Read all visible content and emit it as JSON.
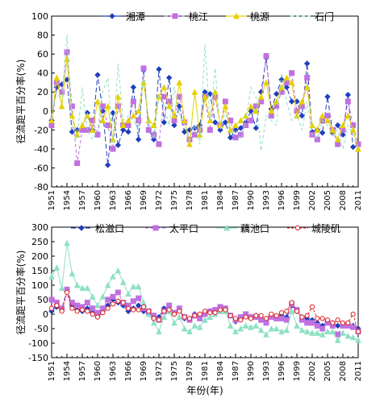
{
  "chart_data": [
    {
      "type": "line",
      "title": "",
      "ylabel": "径流距平百分率(%)",
      "xlabel": "",
      "ylim": [
        -80,
        100
      ],
      "yticks": [
        -80,
        -60,
        -40,
        -20,
        0,
        20,
        40,
        60,
        80,
        100
      ],
      "xrange": [
        1951,
        2011
      ],
      "xticks": [
        1951,
        1954,
        1957,
        1960,
        1963,
        1966,
        1969,
        1972,
        1975,
        1978,
        1981,
        1984,
        1987,
        1990,
        1993,
        1996,
        1999,
        2002,
        2005,
        2008,
        2011
      ],
      "legend_position": "top",
      "series": [
        {
          "name": "湘潭",
          "color": "#1f3fbf",
          "dash": "6,3",
          "marker": "diamond",
          "values": [
            -10,
            25,
            28,
            33,
            -22,
            -20,
            -18,
            -2,
            -20,
            38,
            0,
            -57,
            -2,
            -36,
            -20,
            -22,
            25,
            -30,
            43,
            -20,
            -30,
            44,
            -12,
            35,
            -15,
            5,
            -22,
            -20,
            -18,
            -15,
            20,
            18,
            -12,
            -20,
            -12,
            -28,
            -20,
            -18,
            -12,
            0,
            -18,
            20,
            56,
            2,
            18,
            33,
            25,
            10,
            10,
            -5,
            50,
            -22,
            -20,
            -23,
            15,
            -23,
            -15,
            -25,
            17,
            -38,
            -36
          ]
        },
        {
          "name": "桃江",
          "color": "#c070e0",
          "dash": "4,3",
          "marker": "square",
          "values": [
            -15,
            30,
            20,
            62,
            5,
            -55,
            -20,
            -20,
            -10,
            -25,
            5,
            -15,
            -40,
            5,
            -15,
            -15,
            10,
            -10,
            45,
            -20,
            -25,
            -35,
            15,
            10,
            -10,
            15,
            -12,
            -30,
            -25,
            -20,
            15,
            -20,
            15,
            -15,
            10,
            -10,
            -28,
            -25,
            -15,
            -10,
            5,
            10,
            58,
            -5,
            5,
            20,
            30,
            40,
            0,
            5,
            35,
            -25,
            -30,
            -10,
            -5,
            -20,
            -35,
            -20,
            10,
            -15,
            -35
          ]
        },
        {
          "name": "桃源",
          "color": "#e6d000",
          "dash": "",
          "marker": "triangle",
          "values": [
            -10,
            35,
            5,
            55,
            -5,
            -25,
            -15,
            -5,
            -20,
            10,
            -10,
            5,
            -30,
            15,
            -15,
            -10,
            -5,
            0,
            30,
            -10,
            -15,
            15,
            25,
            5,
            -5,
            30,
            -10,
            -35,
            20,
            -25,
            15,
            -10,
            20,
            -15,
            5,
            -20,
            -15,
            -10,
            -5,
            5,
            0,
            15,
            30,
            0,
            10,
            25,
            35,
            30,
            -5,
            10,
            25,
            -15,
            -20,
            -5,
            -10,
            -20,
            -30,
            -15,
            -5,
            -20,
            -40
          ]
        },
        {
          "name": "石门",
          "color": "#8ee0c4",
          "dash": "4,3",
          "marker": "none",
          "values": [
            -5,
            20,
            10,
            80,
            -15,
            -30,
            25,
            -20,
            -30,
            -20,
            20,
            35,
            -35,
            50,
            -10,
            -5,
            -10,
            -20,
            40,
            -10,
            -30,
            15,
            5,
            -15,
            25,
            -5,
            -15,
            -30,
            -15,
            -35,
            70,
            -10,
            45,
            -20,
            0,
            -25,
            -20,
            -30,
            -10,
            25,
            15,
            -42,
            -5,
            -10,
            -15,
            40,
            10,
            -10,
            -5,
            -20,
            10,
            -25,
            -30,
            -10,
            -15,
            -25,
            -20,
            -40,
            -15,
            -25,
            -40
          ]
        }
      ]
    },
    {
      "type": "line",
      "title": "",
      "ylabel": "径流距平百分率(%)",
      "xlabel": "年份(年)",
      "ylim": [
        -150,
        300
      ],
      "yticks": [
        -150,
        -100,
        -50,
        0,
        50,
        100,
        150,
        200,
        250,
        300
      ],
      "xrange": [
        1951,
        2011
      ],
      "xticks": [
        1951,
        1954,
        1957,
        1960,
        1963,
        1966,
        1969,
        1972,
        1975,
        1978,
        1981,
        1984,
        1987,
        1990,
        1993,
        1996,
        1999,
        2002,
        2005,
        2008,
        2011
      ],
      "legend_position": "top",
      "series": [
        {
          "name": "松滋口",
          "color": "#1f3fbf",
          "dash": "6,3",
          "marker": "diamond",
          "values": [
            10,
            25,
            15,
            80,
            30,
            15,
            10,
            20,
            5,
            -10,
            10,
            30,
            50,
            40,
            30,
            10,
            20,
            30,
            10,
            0,
            -5,
            -10,
            20,
            25,
            0,
            15,
            -15,
            -15,
            0,
            -10,
            5,
            10,
            10,
            20,
            15,
            -5,
            -25,
            -15,
            0,
            -10,
            -5,
            -20,
            -25,
            -10,
            -15,
            -5,
            -10,
            30,
            10,
            -10,
            -15,
            -20,
            -30,
            -40,
            -25,
            -30,
            -40,
            -35,
            -35,
            -40,
            -50
          ]
        },
        {
          "name": "太平口",
          "color": "#c070e0",
          "dash": "4,3",
          "marker": "square",
          "values": [
            50,
            40,
            20,
            85,
            40,
            30,
            25,
            40,
            20,
            5,
            20,
            50,
            60,
            75,
            40,
            30,
            45,
            55,
            20,
            10,
            -5,
            -20,
            10,
            30,
            5,
            20,
            -10,
            -20,
            -5,
            -15,
            0,
            10,
            15,
            25,
            20,
            -5,
            -20,
            -10,
            0,
            -10,
            -10,
            -20,
            -30,
            -10,
            -15,
            -15,
            -20,
            35,
            15,
            -20,
            -30,
            -30,
            -40,
            -50,
            -30,
            -40,
            -70,
            -40,
            -40,
            -45,
            -60
          ]
        },
        {
          "name": "藕池口",
          "color": "#8ee0c4",
          "dash": "",
          "marker": "triangle",
          "values": [
            130,
            160,
            90,
            245,
            140,
            100,
            90,
            90,
            60,
            30,
            60,
            100,
            130,
            150,
            110,
            70,
            95,
            95,
            40,
            0,
            -30,
            -60,
            -10,
            10,
            -30,
            -10,
            -50,
            -60,
            -40,
            -45,
            -20,
            -10,
            0,
            10,
            10,
            -40,
            -60,
            -50,
            -40,
            -45,
            -40,
            -55,
            -70,
            -50,
            -50,
            -60,
            -55,
            10,
            -40,
            -55,
            -60,
            -65,
            -65,
            -70,
            -60,
            -60,
            -90,
            -65,
            -75,
            -80,
            -90
          ]
        },
        {
          "name": "城陵矶",
          "color": "#e02020",
          "dash": "3,2",
          "marker": "circle",
          "values": [
            20,
            30,
            10,
            75,
            20,
            10,
            15,
            10,
            0,
            -10,
            5,
            20,
            35,
            45,
            40,
            20,
            15,
            15,
            25,
            10,
            -15,
            -20,
            10,
            15,
            0,
            10,
            -10,
            -15,
            -5,
            0,
            10,
            5,
            5,
            15,
            15,
            -5,
            -15,
            -20,
            -10,
            -15,
            -5,
            -5,
            -15,
            0,
            -5,
            5,
            10,
            40,
            10,
            -10,
            -5,
            25,
            -15,
            -15,
            -20,
            -30,
            -20,
            -30,
            -30,
            0,
            -60
          ]
        }
      ]
    }
  ]
}
